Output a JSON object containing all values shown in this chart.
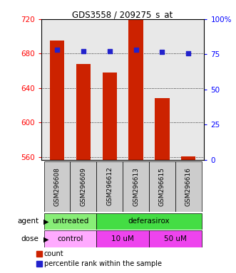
{
  "title": "GDS3558 / 209275_s_at",
  "samples": [
    "GSM296608",
    "GSM296609",
    "GSM296612",
    "GSM296613",
    "GSM296615",
    "GSM296616"
  ],
  "bar_values": [
    695,
    668,
    658,
    720,
    628,
    561
  ],
  "percentile_values": [
    78.0,
    77.0,
    77.0,
    78.0,
    76.5,
    75.5
  ],
  "bar_color": "#cc2200",
  "dot_color": "#2222cc",
  "ylim_left": [
    557,
    720
  ],
  "ylim_right": [
    0,
    100
  ],
  "yticks_left": [
    560,
    600,
    640,
    680,
    720
  ],
  "yticks_right": [
    0,
    25,
    50,
    75,
    100
  ],
  "agent_labels": [
    {
      "text": "untreated",
      "start": 0,
      "end": 2,
      "color": "#88ee77"
    },
    {
      "text": "deferasirox",
      "start": 2,
      "end": 6,
      "color": "#44dd44"
    }
  ],
  "dose_labels": [
    {
      "text": "control",
      "start": 0,
      "end": 2,
      "color": "#ffaaff"
    },
    {
      "text": "10 uM",
      "start": 2,
      "end": 4,
      "color": "#ee44ee"
    },
    {
      "text": "50 uM",
      "start": 4,
      "end": 6,
      "color": "#ee44ee"
    }
  ],
  "legend_count_color": "#cc2200",
  "legend_dot_color": "#2222cc",
  "plot_bg_color": "#e8e8e8"
}
